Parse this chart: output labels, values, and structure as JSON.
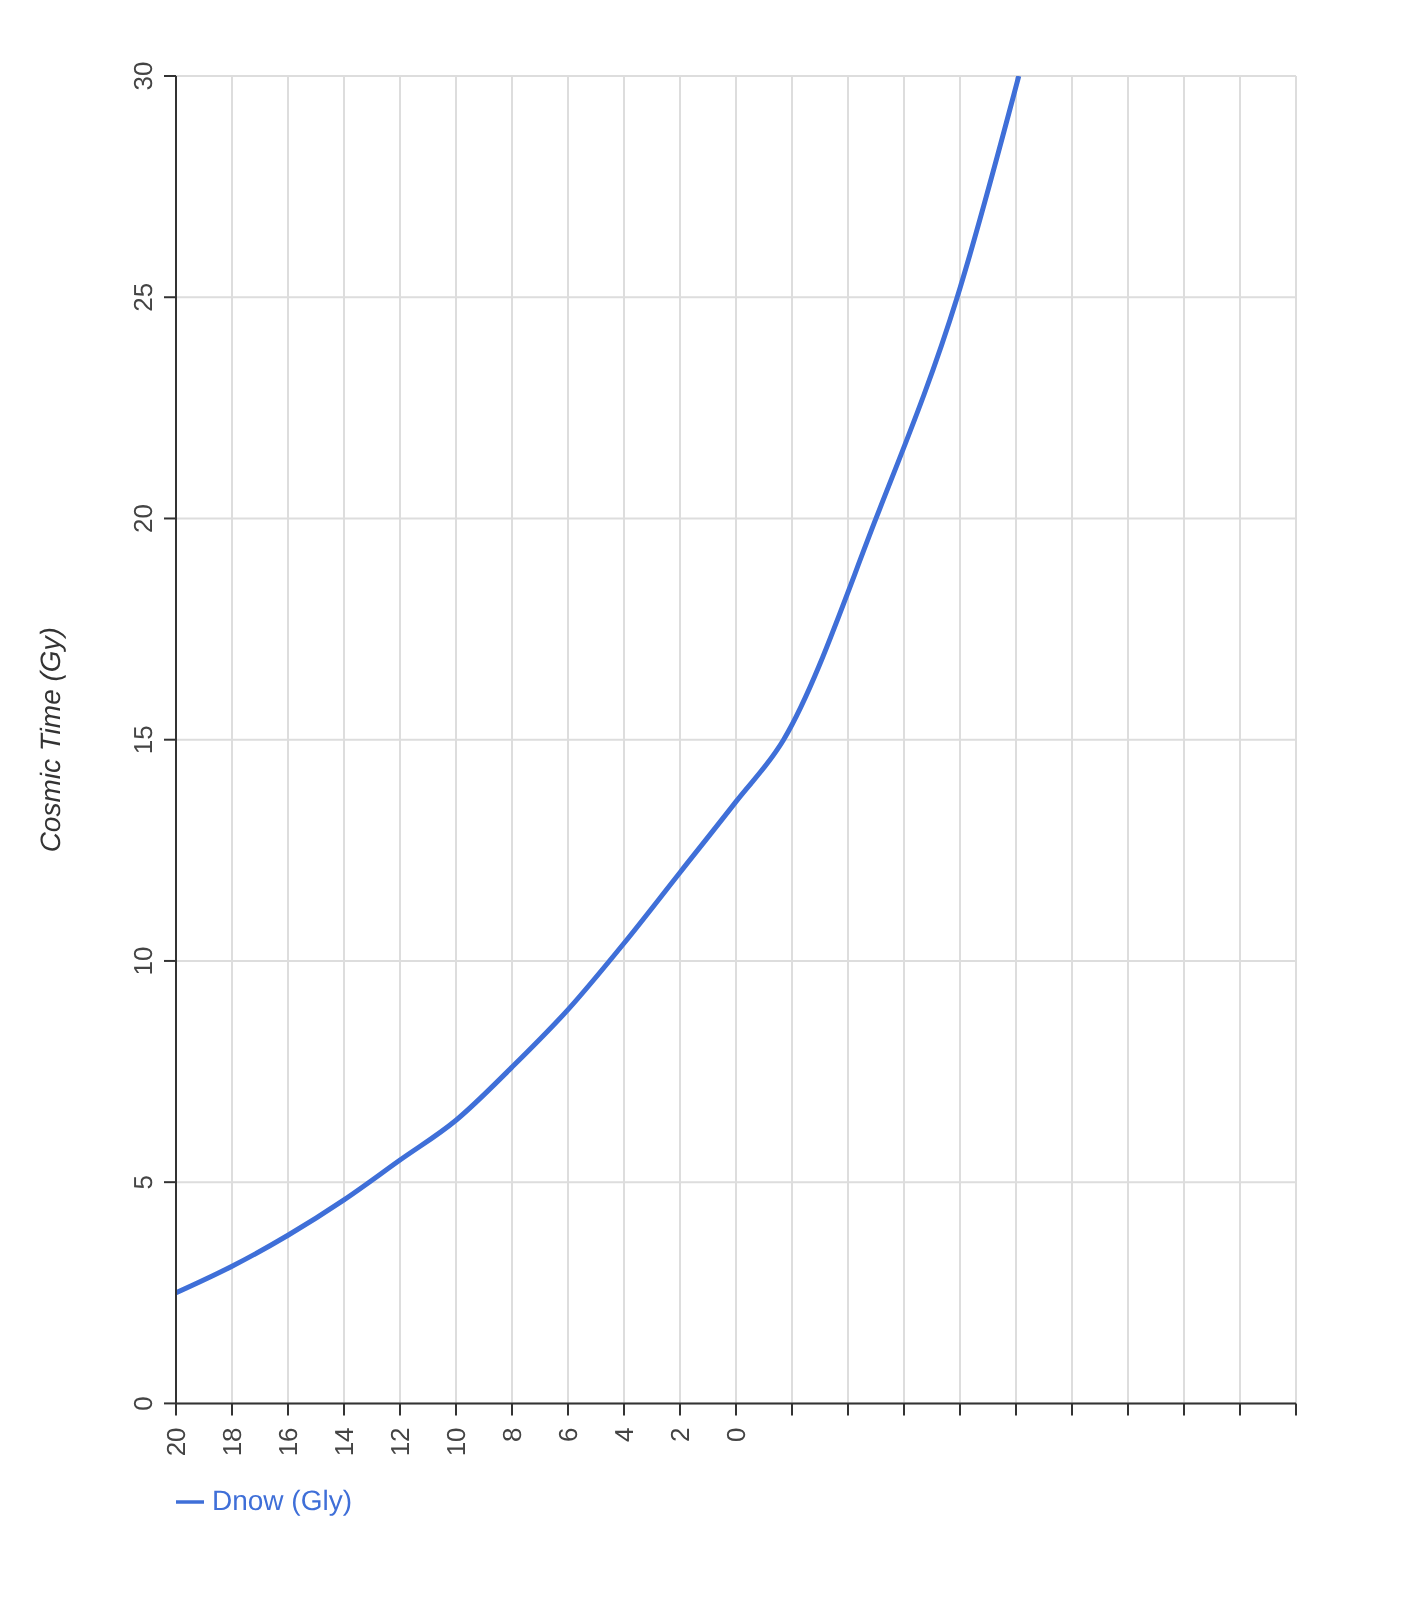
{
  "chart_data": {
    "type": "line",
    "ylabel": "Cosmic Time (Gy)",
    "x": [
      20,
      18,
      16,
      14,
      12,
      10,
      8,
      6,
      4,
      2,
      0,
      -1.7,
      -5,
      -7.9,
      -10.1
    ],
    "series": [
      {
        "name": "Dnow (Gly)",
        "color": "#3f6fd8",
        "values": [
          2.5,
          3.1,
          3.8,
          4.6,
          5.5,
          6.4,
          7.6,
          8.9,
          10.4,
          12,
          13.6,
          15,
          20,
          25,
          30
        ]
      }
    ],
    "xlim": [
      20,
      -20
    ],
    "xticks": [
      20,
      18,
      16,
      14,
      12,
      10,
      8,
      6,
      4,
      2,
      0,
      {
        "value": -2,
        "label": null
      },
      {
        "value": -4,
        "label": null
      },
      {
        "value": -6,
        "label": null
      },
      {
        "value": -8,
        "label": null
      },
      {
        "value": -10,
        "label": null
      },
      {
        "value": -12,
        "label": null
      },
      {
        "value": -14,
        "label": null
      },
      {
        "value": -16,
        "label": null
      },
      {
        "value": -18,
        "label": null
      },
      {
        "value": -20,
        "label": null
      }
    ],
    "ylim": [
      0,
      30
    ],
    "yticks": [
      0,
      5,
      10,
      15,
      20,
      25,
      30
    ],
    "grid": true,
    "legend": "bottom left",
    "marker": "none",
    "line_style": "solid"
  }
}
